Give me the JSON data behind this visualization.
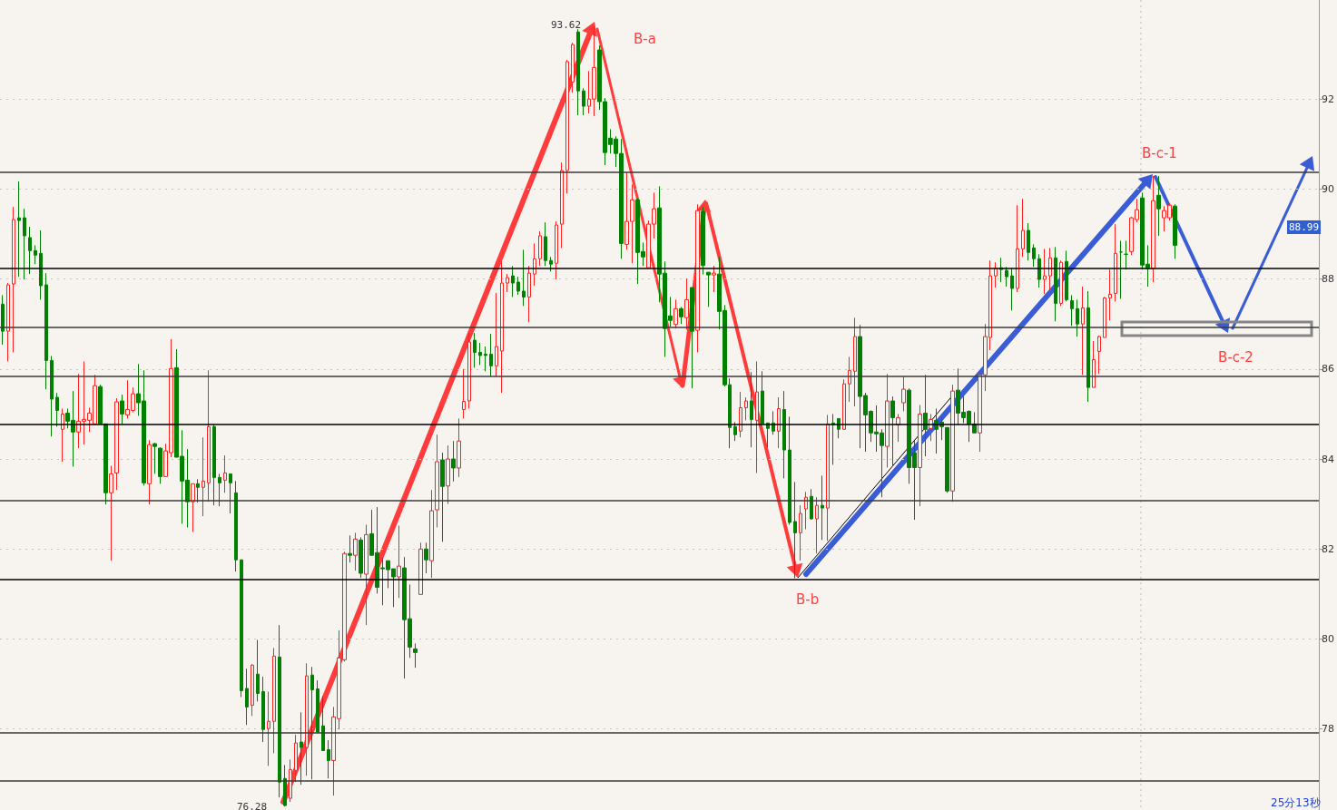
{
  "chart_data": {
    "type": "candlestick",
    "categories": [
      null,
      null,
      null,
      null,
      null,
      null,
      null,
      null,
      null,
      null,
      null,
      null,
      null,
      null,
      null,
      null,
      null,
      null,
      null,
      null,
      null,
      null,
      null,
      null,
      null,
      null,
      null,
      null,
      null,
      null,
      null,
      null,
      null,
      null,
      null,
      null,
      null,
      null,
      null,
      null,
      null,
      null,
      null,
      null,
      null,
      null,
      null,
      null,
      null,
      null,
      null,
      null,
      null,
      null,
      null,
      null,
      null,
      null,
      null,
      null,
      null,
      null,
      null,
      null,
      null,
      null,
      null,
      null,
      null,
      null,
      null,
      null,
      null,
      null,
      null,
      null,
      null,
      null,
      null,
      null,
      null,
      null,
      null,
      null,
      null,
      null,
      null,
      null,
      null,
      null,
      null,
      null,
      null,
      null,
      null,
      null,
      null,
      null,
      null,
      null,
      null,
      null,
      null,
      null,
      null,
      null,
      null,
      null,
      null,
      null,
      null,
      null,
      null,
      null,
      null,
      null,
      null,
      null,
      null,
      null,
      null,
      null,
      null,
      null,
      null,
      null,
      null,
      null,
      null,
      null,
      null,
      null,
      null,
      null,
      null,
      null,
      null,
      null,
      null,
      null,
      null,
      null,
      null,
      null,
      null,
      null,
      null,
      null,
      null,
      null,
      null,
      null,
      null,
      null,
      null,
      null,
      null,
      null,
      null,
      null,
      null,
      null,
      null,
      null,
      null,
      null,
      null,
      null,
      null,
      null,
      null,
      null,
      null,
      null,
      null,
      null,
      null,
      null,
      null,
      null,
      null,
      null,
      null,
      null,
      null,
      null,
      null,
      null,
      null,
      null,
      null,
      null,
      null,
      null,
      null,
      null,
      null,
      null,
      null,
      null,
      null,
      null,
      null,
      null,
      null,
      null,
      null,
      null,
      null,
      null,
      null,
      null,
      null,
      null,
      null,
      null,
      null,
      null,
      null,
      null,
      null,
      null,
      null,
      null,
      null,
      null,
      null,
      null,
      null,
      null,
      null,
      null,
      null,
      null,
      null,
      null,
      null,
      null,
      null,
      null,
      null,
      null,
      null
    ],
    "ohlc": [
      [
        87.44,
        87.64,
        86.54,
        86.84
      ],
      [
        86.84,
        87.91,
        86.17,
        87.87
      ],
      [
        87.89,
        89.6,
        86.37,
        89.32
      ],
      [
        89.36,
        90.17,
        88.05,
        89.3
      ],
      [
        89.36,
        89.56,
        87.99,
        88.96
      ],
      [
        88.92,
        89.16,
        88.11,
        88.63
      ],
      [
        88.63,
        88.75,
        88.33,
        88.53
      ],
      [
        88.57,
        89.08,
        87.54,
        87.85
      ],
      [
        87.87,
        88.13,
        85.55,
        86.19
      ],
      [
        86.19,
        86.29,
        84.5,
        85.33
      ],
      [
        85.37,
        85.47,
        84.72,
        85.08
      ],
      [
        84.66,
        85.12,
        83.94,
        85.0
      ],
      [
        85.02,
        85.12,
        84.68,
        84.84
      ],
      [
        84.86,
        85.51,
        83.83,
        84.6
      ],
      [
        84.6,
        85.89,
        84.24,
        84.84
      ],
      [
        84.84,
        86.17,
        84.32,
        84.88
      ],
      [
        84.86,
        85.14,
        84.6,
        85.02
      ],
      [
        84.78,
        85.87,
        84.78,
        85.63
      ],
      [
        85.61,
        85.65,
        84.78,
        84.78
      ],
      [
        84.78,
        84.78,
        82.99,
        83.25
      ],
      [
        83.25,
        83.85,
        81.74,
        83.67
      ],
      [
        83.69,
        85.35,
        83.31,
        85.27
      ],
      [
        85.29,
        85.43,
        84.78,
        85.0
      ],
      [
        84.98,
        85.75,
        84.9,
        85.1
      ],
      [
        85.08,
        85.59,
        85.04,
        85.45
      ],
      [
        85.45,
        86.11,
        84.96,
        85.25
      ],
      [
        85.29,
        85.97,
        83.41,
        83.47
      ],
      [
        83.45,
        84.42,
        82.99,
        84.32
      ],
      [
        84.34,
        84.36,
        83.67,
        84.28
      ],
      [
        84.24,
        84.26,
        83.45,
        83.61
      ],
      [
        83.61,
        84.34,
        83.61,
        84.18
      ],
      [
        84.14,
        86.66,
        84.04,
        86.01
      ],
      [
        86.03,
        86.44,
        84.04,
        84.04
      ],
      [
        84.06,
        84.64,
        82.56,
        83.51
      ],
      [
        83.53,
        84.22,
        82.48,
        83.05
      ],
      [
        83.05,
        83.45,
        82.38,
        83.45
      ],
      [
        83.45,
        83.55,
        83.03,
        83.37
      ],
      [
        83.37,
        84.48,
        82.73,
        83.51
      ],
      [
        83.47,
        85.97,
        83.05,
        84.72
      ],
      [
        84.72,
        84.76,
        82.97,
        83.59
      ],
      [
        83.59,
        83.67,
        82.95,
        83.47
      ],
      [
        83.53,
        84.08,
        83.25,
        83.69
      ],
      [
        83.67,
        83.67,
        82.79,
        83.47
      ],
      [
        83.25,
        83.51,
        81.5,
        81.76
      ],
      [
        81.76,
        81.76,
        78.71,
        78.85
      ],
      [
        78.9,
        79.34,
        78.09,
        78.49
      ],
      [
        78.53,
        79.44,
        78.29,
        79.42
      ],
      [
        79.22,
        79.98,
        78.61,
        78.79
      ],
      [
        78.83,
        79.16,
        77.71,
        77.99
      ],
      [
        78.01,
        78.83,
        77.18,
        78.17
      ],
      [
        78.17,
        79.8,
        77.46,
        79.62
      ],
      [
        79.6,
        80.31,
        76.48,
        76.82
      ],
      [
        76.9,
        77.2,
        76.28,
        76.3
      ],
      [
        76.46,
        77.32,
        76.38,
        77.1
      ],
      [
        77.08,
        77.87,
        76.82,
        77.69
      ],
      [
        77.71,
        78.37,
        76.76,
        77.59
      ],
      [
        77.59,
        79.46,
        76.96,
        79.18
      ],
      [
        79.2,
        79.38,
        76.88,
        78.87
      ],
      [
        78.89,
        79.08,
        77.93,
        77.93
      ],
      [
        78.07,
        78.73,
        77.52,
        77.52
      ],
      [
        77.54,
        77.75,
        76.9,
        77.3
      ],
      [
        77.3,
        78.49,
        76.52,
        78.27
      ],
      [
        78.23,
        80.19,
        77.99,
        79.58
      ],
      [
        79.54,
        81.94,
        79.5,
        81.9
      ],
      [
        81.9,
        82.3,
        81.7,
        81.86
      ],
      [
        81.86,
        82.36,
        81.52,
        82.22
      ],
      [
        82.2,
        82.26,
        81.36,
        81.46
      ],
      [
        81.44,
        82.54,
        80.31,
        82.32
      ],
      [
        82.34,
        82.87,
        81.86,
        81.86
      ],
      [
        81.92,
        82.93,
        81.01,
        81.15
      ],
      [
        81.58,
        81.8,
        80.75,
        81.56
      ],
      [
        81.74,
        81.74,
        81.13,
        81.54
      ],
      [
        81.56,
        81.56,
        80.71,
        81.38
      ],
      [
        81.38,
        82.52,
        80.91,
        81.62
      ],
      [
        81.58,
        81.82,
        79.12,
        80.43
      ],
      [
        80.45,
        81.21,
        79.58,
        79.82
      ],
      [
        79.78,
        79.9,
        79.36,
        79.7
      ],
      [
        80.99,
        82.14,
        80.99,
        82.0
      ],
      [
        82.0,
        82.14,
        81.46,
        81.76
      ],
      [
        81.74,
        83.31,
        81.36,
        82.85
      ],
      [
        82.87,
        84.54,
        82.48,
        83.94
      ],
      [
        83.98,
        84.14,
        82.16,
        83.39
      ],
      [
        83.4,
        84.3,
        83.0,
        84.0
      ],
      [
        84.0,
        84.4,
        83.5,
        83.8
      ],
      [
        83.8,
        84.9,
        83.6,
        84.4
      ],
      [
        85.1,
        86.0,
        84.9,
        85.28
      ],
      [
        85.29,
        86.8,
        85.12,
        86.6
      ],
      [
        86.64,
        86.8,
        86.03,
        86.37
      ],
      [
        86.37,
        86.58,
        86.09,
        86.3
      ],
      [
        86.33,
        86.5,
        85.95,
        86.3
      ],
      [
        86.33,
        86.78,
        85.83,
        86.07
      ],
      [
        86.07,
        87.69,
        85.83,
        86.5
      ],
      [
        86.4,
        88.41,
        85.47,
        87.91
      ],
      [
        87.91,
        88.11,
        87.71,
        88.03
      ],
      [
        88.07,
        88.29,
        87.6,
        87.91
      ],
      [
        87.93,
        88.05,
        87.65,
        87.73
      ],
      [
        87.73,
        88.65,
        87.4,
        87.6
      ],
      [
        87.6,
        88.29,
        87.04,
        88.13
      ],
      [
        88.11,
        88.79,
        87.85,
        88.45
      ],
      [
        88.45,
        89.06,
        88.29,
        88.96
      ],
      [
        88.94,
        89.26,
        88.29,
        88.41
      ],
      [
        88.41,
        88.49,
        88.17,
        88.33
      ],
      [
        88.35,
        89.28,
        87.99,
        89.2
      ],
      [
        89.22,
        90.59,
        88.69,
        90.41
      ],
      [
        90.41,
        92.87,
        89.9,
        92.83
      ],
      [
        92.38,
        93.25,
        92.14,
        93.21
      ],
      [
        93.49,
        93.55,
        91.64,
        92.18
      ],
      [
        92.18,
        92.24,
        91.64,
        91.84
      ],
      [
        91.84,
        92.62,
        91.68,
        92.0
      ],
      [
        92.0,
        93.62,
        91.62,
        92.7
      ],
      [
        93.09,
        93.19,
        91.76,
        91.94
      ],
      [
        91.94,
        92.02,
        90.53,
        90.81
      ],
      [
        91.13,
        91.33,
        90.79,
        90.99
      ],
      [
        91.11,
        91.17,
        90.49,
        90.79
      ],
      [
        90.79,
        91.11,
        88.45,
        88.79
      ],
      [
        88.77,
        90.37,
        88.65,
        89.28
      ],
      [
        89.28,
        90.1,
        88.35,
        89.76
      ],
      [
        89.76,
        89.8,
        87.89,
        88.59
      ],
      [
        88.61,
        88.81,
        88.29,
        88.49
      ],
      [
        88.25,
        89.3,
        88.25,
        89.22
      ],
      [
        89.22,
        89.92,
        88.9,
        89.56
      ],
      [
        89.58,
        90.06,
        87.48,
        88.11
      ],
      [
        88.13,
        88.39,
        86.27,
        86.9
      ],
      [
        87.18,
        87.6,
        86.94,
        87.08
      ],
      [
        86.99,
        87.54,
        86.9,
        87.34
      ],
      [
        87.34,
        87.38,
        87.0,
        87.16
      ],
      [
        87.14,
        88.01,
        86.88,
        87.54
      ],
      [
        87.81,
        87.81,
        85.57,
        86.84
      ],
      [
        86.86,
        89.66,
        86.37,
        89.52
      ],
      [
        89.5,
        89.6,
        88.1,
        88.3
      ],
      [
        88.15,
        88.15,
        87.38,
        88.09
      ],
      [
        88.09,
        88.29,
        87.71,
        88.13
      ],
      [
        88.11,
        88.49,
        86.88,
        87.28
      ],
      [
        87.3,
        87.42,
        85.61,
        85.65
      ],
      [
        85.65,
        85.79,
        84.24,
        84.7
      ],
      [
        84.72,
        84.82,
        84.4,
        84.54
      ],
      [
        84.62,
        85.49,
        84.48,
        85.14
      ],
      [
        85.14,
        85.37,
        84.86,
        85.29
      ],
      [
        85.29,
        85.93,
        84.26,
        84.88
      ],
      [
        84.86,
        86.17,
        83.69,
        85.49
      ],
      [
        85.51,
        85.95,
        84.78,
        84.78
      ],
      [
        84.8,
        84.8,
        84.26,
        84.68
      ],
      [
        84.8,
        85.06,
        84.54,
        84.62
      ],
      [
        84.62,
        85.37,
        84.24,
        85.12
      ],
      [
        85.1,
        85.51,
        83.57,
        84.2
      ],
      [
        84.2,
        84.94,
        82.54,
        82.59
      ],
      [
        82.61,
        83.49,
        81.35,
        82.36
      ],
      [
        82.36,
        82.97,
        81.74,
        82.79
      ],
      [
        82.89,
        83.27,
        82.44,
        83.15
      ],
      [
        83.17,
        83.33,
        82.65,
        82.67
      ],
      [
        82.67,
        83.15,
        81.9,
        82.97
      ],
      [
        82.97,
        83.63,
        82.2,
        82.91
      ],
      [
        82.91,
        84.98,
        82.18,
        84.78
      ],
      [
        84.8,
        85.0,
        83.87,
        84.76
      ],
      [
        84.9,
        84.9,
        84.46,
        84.66
      ],
      [
        84.66,
        85.77,
        84.66,
        85.67
      ],
      [
        85.67,
        86.27,
        85.27,
        85.97
      ],
      [
        85.95,
        87.14,
        85.17,
        86.72
      ],
      [
        86.72,
        86.98,
        84.24,
        85.39
      ],
      [
        85.41,
        85.47,
        84.16,
        84.98
      ],
      [
        85.06,
        85.08,
        84.38,
        84.58
      ],
      [
        84.6,
        85.19,
        84.16,
        84.56
      ],
      [
        84.58,
        84.66,
        83.15,
        84.3
      ],
      [
        84.28,
        85.89,
        83.81,
        85.29
      ],
      [
        85.29,
        85.39,
        83.85,
        84.92
      ],
      [
        84.76,
        85.0,
        84.38,
        84.92
      ],
      [
        85.25,
        85.83,
        85.06,
        85.55
      ],
      [
        85.53,
        85.57,
        83.45,
        83.81
      ],
      [
        84.14,
        84.4,
        82.65,
        83.81
      ],
      [
        83.81,
        85.2,
        82.95,
        85.0
      ],
      [
        85.02,
        85.87,
        84.06,
        84.66
      ],
      [
        84.68,
        85.0,
        84.4,
        84.88
      ],
      [
        84.86,
        85.12,
        84.12,
        84.66
      ],
      [
        84.82,
        84.92,
        84.42,
        84.72
      ],
      [
        84.7,
        84.7,
        83.25,
        83.29
      ],
      [
        83.29,
        85.65,
        83.05,
        85.51
      ],
      [
        85.53,
        86.01,
        84.76,
        85.02
      ],
      [
        85.04,
        85.39,
        84.8,
        84.92
      ],
      [
        85.06,
        85.08,
        84.38,
        84.78
      ],
      [
        84.78,
        85.04,
        84.58,
        84.58
      ],
      [
        84.58,
        85.93,
        84.16,
        85.87
      ],
      [
        85.87,
        87.0,
        85.51,
        86.72
      ],
      [
        86.7,
        88.41,
        86.42,
        88.07
      ],
      [
        88.07,
        88.37,
        87.81,
        88.23
      ],
      [
        88.25,
        88.47,
        87.93,
        88.21
      ],
      [
        88.19,
        88.27,
        87.83,
        88.05
      ],
      [
        88.07,
        88.25,
        87.3,
        87.79
      ],
      [
        87.79,
        89.64,
        87.71,
        88.67
      ],
      [
        88.67,
        89.78,
        88.49,
        89.08
      ],
      [
        89.08,
        89.24,
        88.41,
        88.59
      ],
      [
        88.69,
        88.77,
        88.27,
        88.45
      ],
      [
        88.45,
        88.55,
        87.81,
        87.99
      ],
      [
        87.99,
        88.67,
        87.67,
        88.07
      ],
      [
        88.07,
        88.69,
        87.77,
        88.47
      ],
      [
        88.47,
        88.71,
        87.06,
        87.46
      ],
      [
        87.46,
        88.41,
        87.4,
        88.37
      ],
      [
        88.39,
        88.63,
        87.5,
        87.54
      ],
      [
        87.52,
        87.64,
        86.96,
        87.34
      ],
      [
        87.34,
        87.54,
        86.72,
        87.0
      ],
      [
        87.0,
        87.83,
        85.87,
        87.36
      ],
      [
        87.36,
        87.73,
        85.27,
        85.59
      ],
      [
        85.59,
        86.62,
        85.59,
        86.21
      ],
      [
        86.39,
        86.74,
        85.89,
        86.72
      ],
      [
        86.7,
        87.6,
        86.7,
        87.58
      ],
      [
        87.58,
        88.21,
        87.08,
        87.66
      ],
      [
        87.68,
        89.22,
        87.5,
        88.57
      ],
      [
        88.6,
        88.85,
        87.56,
        88.6
      ],
      [
        88.55,
        88.85,
        88.21,
        88.55
      ],
      [
        88.61,
        89.38,
        88.53,
        89.36
      ],
      [
        89.32,
        89.78,
        89.26,
        89.54
      ],
      [
        89.8,
        89.92,
        88.21,
        88.31
      ],
      [
        88.33,
        88.75,
        87.83,
        88.23
      ],
      [
        88.23,
        90.29,
        87.93,
        89.74
      ],
      [
        89.86,
        90.29,
        88.96,
        89.56
      ],
      [
        89.36,
        89.62,
        89.06,
        89.52
      ],
      [
        89.36,
        89.68,
        89.3,
        89.64
      ],
      [
        89.62,
        89.66,
        88.45,
        88.75
      ],
      null,
      null,
      null,
      null,
      null,
      null,
      null,
      null,
      null,
      null,
      null,
      null,
      null,
      null,
      null,
      null,
      null,
      null,
      null,
      null,
      null,
      null,
      null,
      null,
      null,
      null
    ],
    "colors": [
      "#008000",
      "#ff2020",
      "#ff2020",
      "#008000",
      "#008000",
      "#008000",
      "#008000",
      "#008000",
      "#008000",
      "#008000",
      "#008000",
      "#ff2020",
      "#008000",
      "#008000",
      "#ff2020",
      "#ff2020",
      "#ff2020",
      "#ff2020",
      "#008000",
      "#008000",
      "#ff2020",
      "#ff2020",
      "#008000",
      "#ff2020",
      "#ff2020",
      "#008000",
      "#008000",
      "#ff2020",
      "#008000",
      "#008000",
      "#ff2020",
      "#ff2020",
      "#008000",
      "#008000",
      "#008000",
      "#ff2020",
      "#008000",
      "#ff2020",
      "#ff2020",
      "#008000",
      "#008000",
      "#ff2020",
      "#008000",
      "#008000",
      "#008000",
      "#008000",
      "#ff2020",
      "#008000",
      "#008000",
      "#ff2020",
      "#ff2020",
      "#008000",
      "#008000",
      "#ff2020",
      "#ff2020",
      "#008000",
      "#ff2020",
      "#008000",
      "#008000",
      "#008000",
      "#008000",
      "#ff2020",
      "#ff2020",
      "#ff2020",
      "#008000",
      "#ff2020",
      "#008000",
      "#ff2020",
      "#008000",
      "#008000",
      "#008000",
      "#008000",
      "#008000",
      "#ff2020",
      "#008000",
      "#008000",
      "#008000",
      "#ff2020",
      "#008000",
      "#ff2020",
      "#ff2020",
      "#008000",
      "#ff2020",
      "#008000",
      "#ff2020",
      "#ff2020",
      "#ff2020",
      "#008000",
      "#008000",
      "#008000",
      "#008000",
      "#ff2020",
      "#ff2020",
      "#ff2020",
      "#008000",
      "#008000",
      "#008000",
      "#ff2020",
      "#ff2020",
      "#ff2020",
      "#008000",
      "#008000",
      "#ff2020",
      "#ff2020",
      "#ff2020",
      "#ff2020",
      "#008000",
      "#008000",
      "#ff2020",
      "#ff2020",
      "#008000",
      "#008000",
      "#008000",
      "#008000",
      "#008000",
      "#ff2020",
      "#ff2020",
      "#008000",
      "#008000",
      "#ff2020",
      "#ff2020",
      "#008000",
      "#008000",
      "#008000",
      "#ff2020",
      "#008000",
      "#ff2020",
      "#008000",
      "#ff2020",
      "#008000",
      "#008000",
      "#ff2020",
      "#008000",
      "#008000",
      "#008000",
      "#008000",
      "#ff2020",
      "#ff2020",
      "#008000",
      "#ff2020",
      "#008000",
      "#008000",
      "#008000",
      "#ff2020",
      "#008000",
      "#008000",
      "#008000",
      "#ff2020",
      "#ff2020",
      "#008000",
      "#ff2020",
      "#008000",
      "#ff2020",
      "#008000",
      "#008000",
      "#ff2020",
      "#ff2020",
      "#ff2020",
      "#008000",
      "#008000",
      "#008000",
      "#008000",
      "#008000",
      "#ff2020",
      "#008000",
      "#ff2020",
      "#ff2020",
      "#008000",
      "#008000",
      "#ff2020",
      "#008000",
      "#ff2020",
      "#008000",
      "#008000",
      "#008000",
      "#ff2020",
      "#008000",
      "#008000",
      "#008000",
      "#008000",
      "#ff2020",
      "#ff2020",
      "#ff2020",
      "#ff2020",
      "#008000",
      "#008000",
      "#008000",
      "#ff2020",
      "#ff2020",
      "#008000",
      "#008000",
      "#008000",
      "#ff2020",
      "#ff2020",
      "#008000",
      "#ff2020",
      "#008000",
      "#008000",
      "#008000",
      "#ff2020",
      "#008000",
      "#ff2020",
      "#ff2020",
      "#ff2020",
      "#ff2020",
      "#ff2020",
      "#008000",
      "#008000",
      "#ff2020",
      "#ff2020",
      "#008000",
      "#008000",
      "#ff2020",
      "#008000",
      "#ff2020",
      "#ff2020",
      "#008000",
      null,
      null,
      null,
      null,
      null,
      null,
      null,
      null,
      null,
      null,
      null,
      null,
      null,
      null,
      null,
      null,
      null,
      null,
      null,
      null,
      null,
      null,
      null,
      null,
      null,
      null
    ],
    "ylim": [
      76.2,
      94.2
    ],
    "yticks": [
      78,
      80,
      82,
      84,
      86,
      88,
      90,
      92
    ],
    "grid": "y",
    "tick_labels": "y",
    "ref_lines": [
      {
        "axis": "y",
        "value": 90.37,
        "color": "#3a3a3a"
      },
      {
        "axis": "y",
        "value": 88.23,
        "color": "#000000"
      },
      {
        "axis": "y",
        "value": 86.92,
        "color": "#3a3a3a"
      },
      {
        "axis": "y",
        "value": 85.83,
        "color": "#3a3a3a"
      },
      {
        "axis": "y",
        "value": 84.78,
        "color": "#000000"
      },
      {
        "axis": "y",
        "value": 83.07,
        "color": "#3a3a3a"
      },
      {
        "axis": "y",
        "value": 81.33,
        "color": "#000000"
      },
      {
        "axis": "y",
        "value": 77.91,
        "color": "#3a3a3a"
      },
      {
        "axis": "y",
        "value": 76.84,
        "color": "#3a3a3a"
      }
    ],
    "annotations": [
      "B-a",
      "B-b",
      "B-c-1",
      "B-c-2",
      "93.62",
      "76.28",
      "88.99",
      "25分13秒"
    ]
  }
}
